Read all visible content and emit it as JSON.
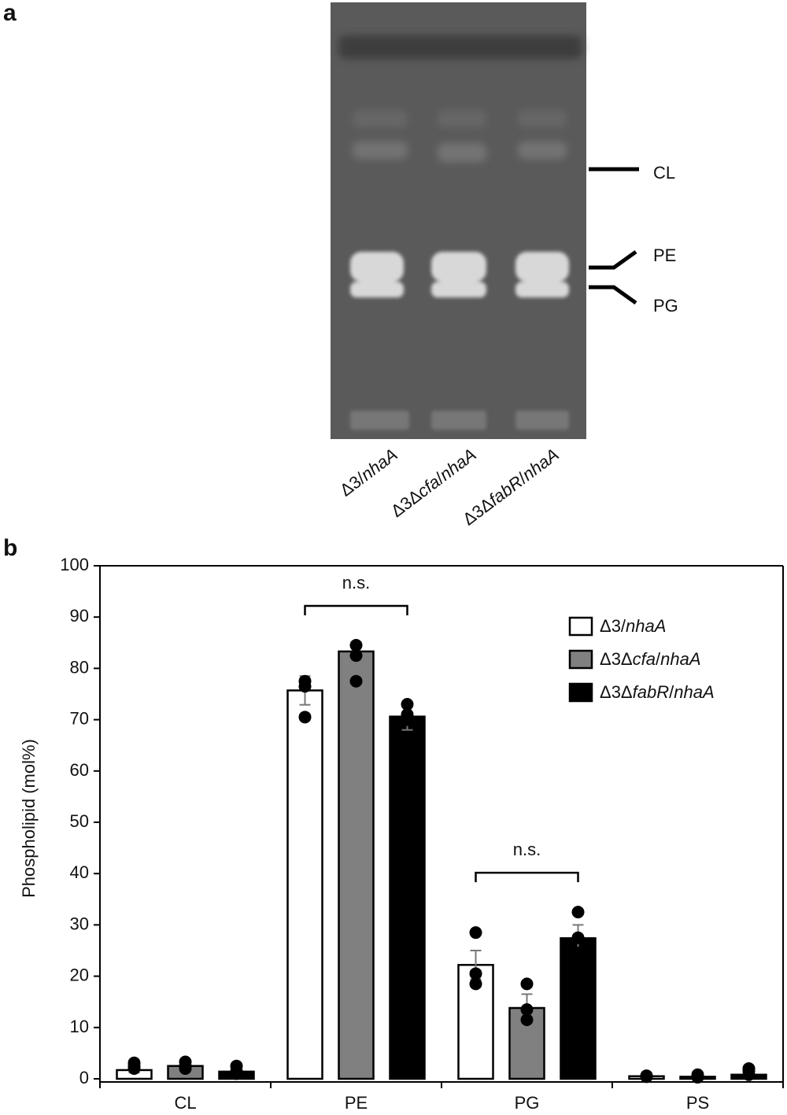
{
  "panel_a": {
    "label": "a",
    "lane_labels": [
      "Δ3/nhaA",
      "Δ3Δcfa/nhaA",
      "Δ3ΔfabR/nhaA"
    ],
    "band_labels": [
      "CL",
      "PE",
      "PG"
    ]
  },
  "chart_data": {
    "type": "bar",
    "panel_label": "b",
    "y_label": "Phospholipid (mol%)",
    "categories": [
      "CL",
      "PE",
      "PG",
      "PS"
    ],
    "ylim": [
      0,
      100
    ],
    "yticks": [
      0,
      10,
      20,
      30,
      40,
      50,
      60,
      70,
      80,
      90,
      100
    ],
    "legend": "top-right",
    "error_color": "#777777",
    "series": [
      {
        "name": "Δ3/nhaA",
        "color": "#ffffff",
        "values": [
          1.7,
          75.7,
          22.2,
          0.5
        ],
        "errors": [
          0.5,
          2.8,
          2.8,
          0.2
        ],
        "points": [
          [
            3.1,
            2.5,
            2.0
          ],
          [
            77.5,
            76.5,
            70.5
          ],
          [
            28.5,
            20.5,
            18.5
          ],
          [
            0.6,
            0.4,
            0.5
          ]
        ]
      },
      {
        "name": "Δ3Δcfa/nhaA",
        "color": "#808080",
        "values": [
          2.5,
          83.3,
          13.8,
          0.4
        ],
        "errors": [
          0.5,
          1.8,
          2.7,
          0.2
        ],
        "points": [
          [
            3.3,
            2.5,
            2.0
          ],
          [
            84.5,
            82.5,
            77.5
          ],
          [
            18.5,
            13.5,
            11.5
          ],
          [
            0.8,
            0.3,
            0.4
          ]
        ]
      },
      {
        "name": "Δ3ΔfabR/nhaA",
        "color": "#000000",
        "values": [
          1.4,
          70.6,
          27.4,
          0.8
        ],
        "errors": [
          0.4,
          2.6,
          2.6,
          0.4
        ],
        "points": [
          [
            2.5,
            1.5,
            1.0
          ],
          [
            73.0,
            70.0,
            71.0
          ],
          [
            32.5,
            27.5,
            24.5
          ],
          [
            2.0,
            1.5,
            0.8
          ]
        ]
      }
    ],
    "annotations": [
      {
        "text": "n.s.",
        "category": "PE"
      },
      {
        "text": "n.s.",
        "category": "PG"
      }
    ]
  }
}
